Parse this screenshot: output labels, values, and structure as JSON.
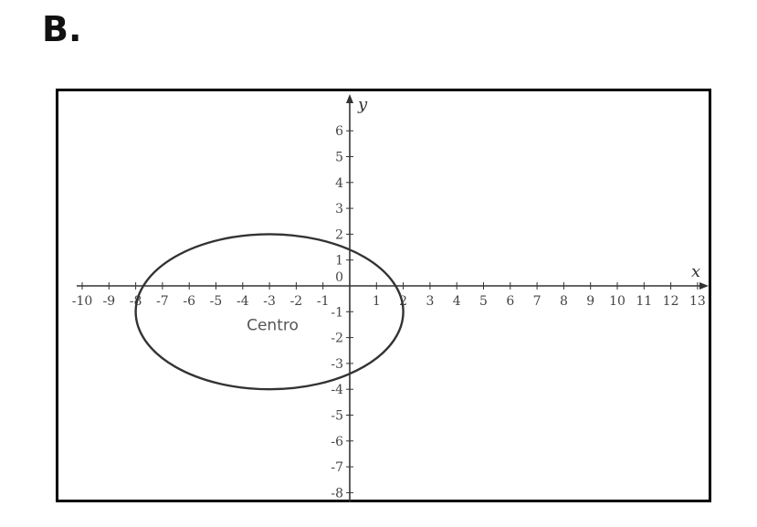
{
  "option_label": "B.",
  "diagram": {
    "x_axis_label": "x",
    "y_axis_label": "y",
    "x_ticks": [
      "-10",
      "-9",
      "-8",
      "-7",
      "-6",
      "-5",
      "-4",
      "-3",
      "-2",
      "-1",
      "0",
      "1",
      "2",
      "3",
      "4",
      "5",
      "6",
      "7",
      "8",
      "9",
      "10",
      "11",
      "12",
      "13"
    ],
    "y_ticks": [
      "6",
      "5",
      "4",
      "3",
      "2",
      "1",
      "0",
      "-1",
      "-2",
      "-3",
      "-4",
      "-5",
      "-6",
      "-7",
      "-8"
    ],
    "ellipse_center_label": "Centro",
    "ellipse": {
      "center": [
        -3,
        -1
      ],
      "semi_axis_x": 5,
      "semi_axis_y": 3
    }
  }
}
